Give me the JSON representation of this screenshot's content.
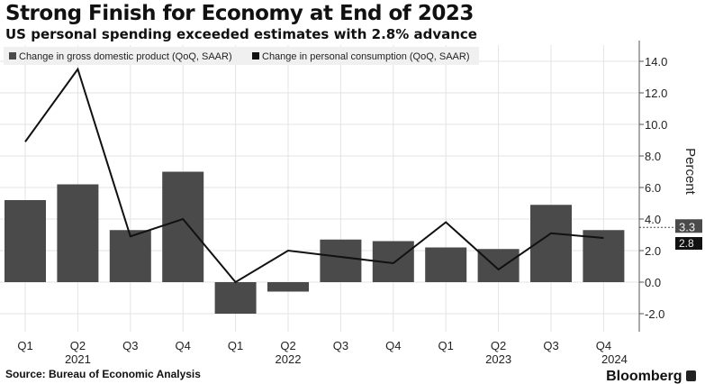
{
  "chart_data": {
    "type": "bar+line",
    "title": "Strong Finish for Economy at End of 2023",
    "subtitle": "US personal spending exceeded estimates with 2.8% advance",
    "categories": [
      "Q1",
      "Q2",
      "Q3",
      "Q4",
      "Q1",
      "Q2",
      "Q3",
      "Q4",
      "Q1",
      "Q2",
      "Q3",
      "Q4"
    ],
    "year_labels": [
      {
        "after_index": 1,
        "label": "2021"
      },
      {
        "after_index": 5,
        "label": "2022"
      },
      {
        "after_index": 9,
        "label": "2023"
      },
      {
        "after_index": 11,
        "label": "2024"
      }
    ],
    "series": [
      {
        "name": "Change in gross domestic product (QoQ, SAAR)",
        "type": "bar",
        "color": "#4a4a4a",
        "values": [
          5.2,
          6.2,
          3.3,
          7.0,
          -2.0,
          -0.6,
          2.7,
          2.6,
          2.2,
          2.1,
          4.9,
          3.3
        ]
      },
      {
        "name": "Change in personal consumption (QoQ, SAAR)",
        "type": "line",
        "color": "#111111",
        "values": [
          8.9,
          13.5,
          2.9,
          4.0,
          0.0,
          2.0,
          1.6,
          1.2,
          3.8,
          0.8,
          3.1,
          2.8
        ]
      }
    ],
    "ylabel": "Percent",
    "ylim": [
      -3.0,
      15.2
    ],
    "yticks": [
      "-2.0",
      "0.0",
      "2.0",
      "4.0",
      "6.0",
      "8.0",
      "10.0",
      "12.0",
      "14.0"
    ],
    "ytick_values": [
      -2,
      0,
      2,
      4,
      6,
      8,
      10,
      12,
      14
    ],
    "last_value_labels": [
      "3.3",
      "2.8"
    ],
    "grid": true,
    "legend": "top-left",
    "yaxis_side": "right"
  },
  "source": "Source: Bureau of Economic Analysis",
  "brand": "Bloomberg"
}
